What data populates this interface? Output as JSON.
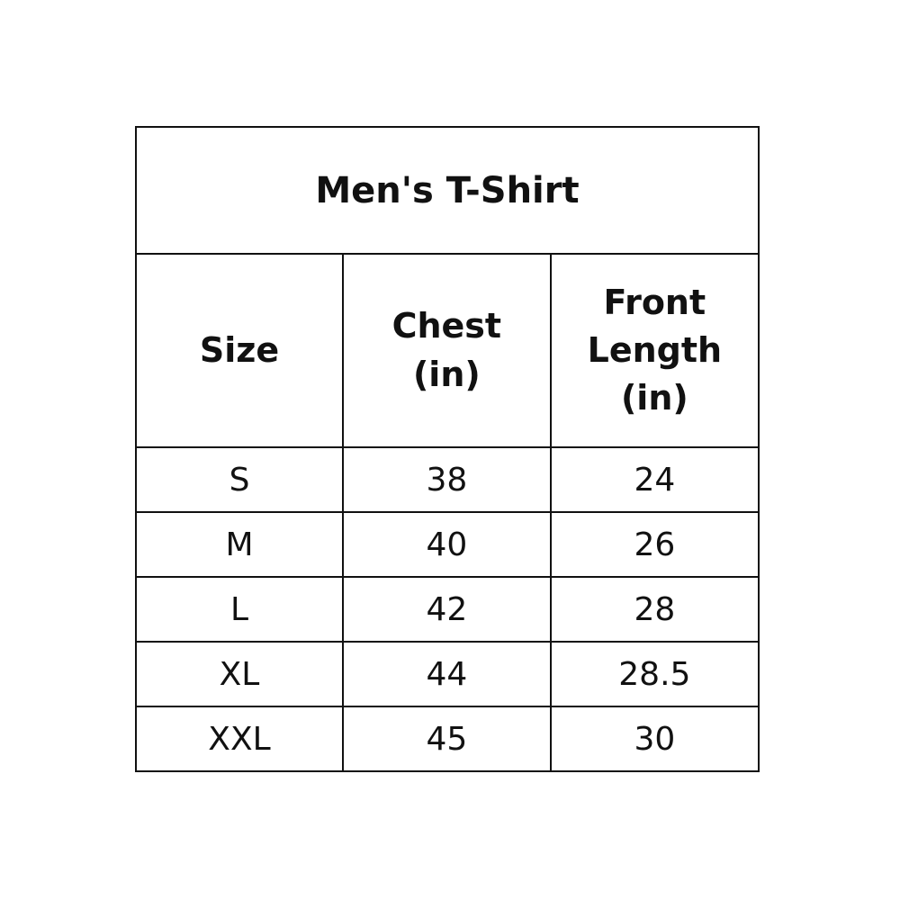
{
  "title": "Men's T-Shirt",
  "headers": [
    "Size",
    "Chest\n(in)",
    "Front\nLength\n(in)"
  ],
  "header_lines": [
    [
      "Size"
    ],
    [
      "Chest",
      "(in)"
    ],
    [
      "Front",
      "Length",
      "(in)"
    ]
  ],
  "rows": [
    [
      "S",
      "38",
      "24"
    ],
    [
      "M",
      "40",
      "26"
    ],
    [
      "L",
      "42",
      "28"
    ],
    [
      "XL",
      "44",
      "28.5"
    ],
    [
      "XXL",
      "45",
      "30"
    ]
  ]
}
